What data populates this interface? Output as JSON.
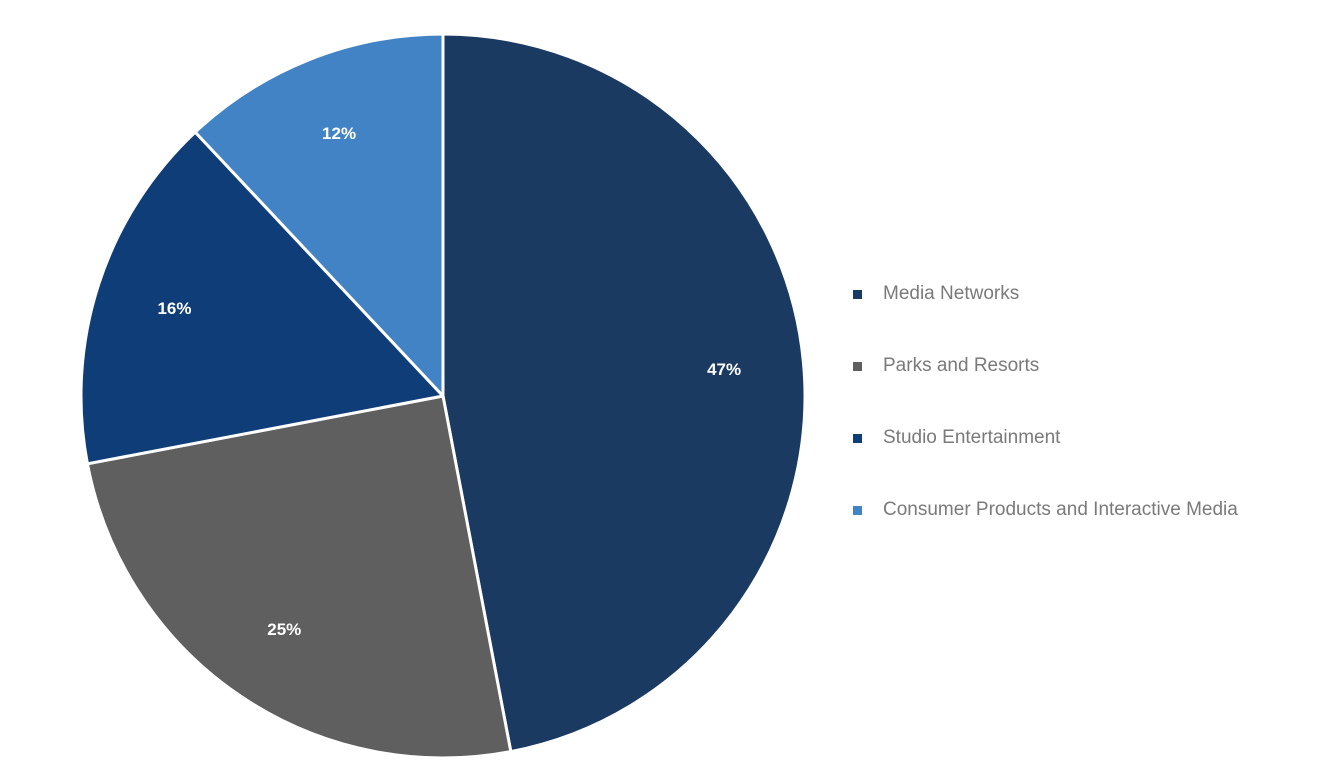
{
  "chart_data": {
    "type": "pie",
    "title": "",
    "legend_position": "right",
    "slices": [
      {
        "label": "Media Networks",
        "value": 47,
        "display": "47%",
        "color": "#1a3a62"
      },
      {
        "label": "Parks and Resorts",
        "value": 25,
        "display": "25%",
        "color": "#5f5f5f"
      },
      {
        "label": "Studio Entertainment",
        "value": 16,
        "display": "16%",
        "color": "#0e3d78"
      },
      {
        "label": "Consumer Products and Interactive Media",
        "value": 12,
        "display": "12%",
        "color": "#4283c6"
      }
    ]
  }
}
